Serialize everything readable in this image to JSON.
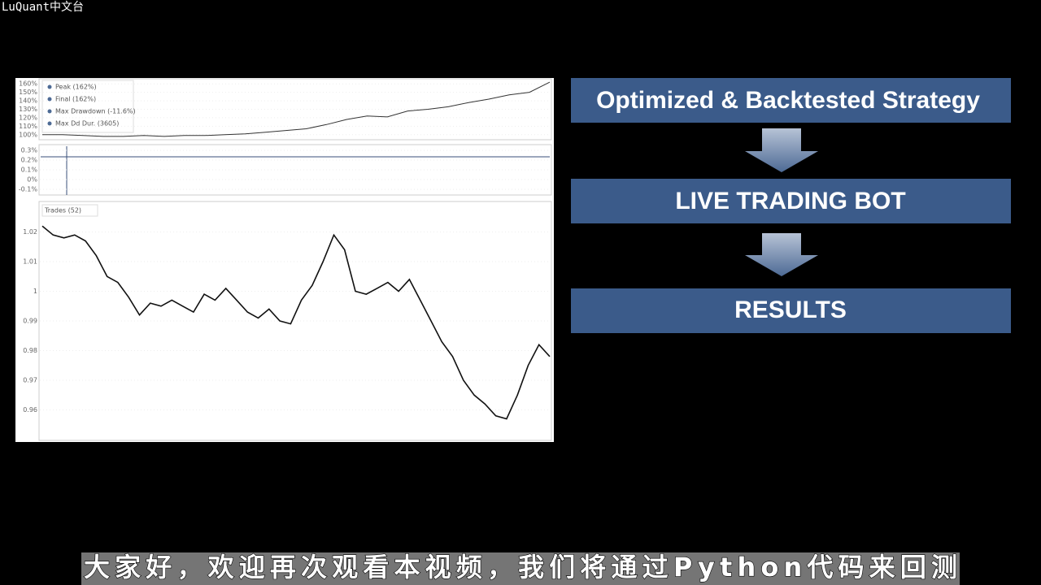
{
  "watermark": "LuQuant中文台",
  "backtest": {
    "equity": {
      "legend": [
        "Peak (162%)",
        "Final (162%)",
        "Max Drawdown (-11.6%)",
        "Max Dd Dur. (3605)"
      ],
      "ylim": [
        95,
        165
      ],
      "yticks": [
        {
          "value": 100,
          "label": "100%"
        },
        {
          "value": 110,
          "label": "110%"
        },
        {
          "value": 120,
          "label": "120%"
        },
        {
          "value": 130,
          "label": "130%"
        },
        {
          "value": 140,
          "label": "140%"
        },
        {
          "value": 150,
          "label": "150%"
        },
        {
          "value": 160,
          "label": "160%"
        }
      ],
      "values": [
        100,
        100,
        99,
        98,
        98,
        99,
        98,
        99,
        99,
        100,
        101,
        103,
        105,
        107,
        112,
        118,
        122,
        121,
        128,
        130,
        133,
        138,
        142,
        147,
        150,
        162
      ]
    },
    "trades": {
      "ylim": [
        -0.15,
        0.35
      ],
      "yticks": [
        {
          "value": -0.1,
          "label": "-0.1%"
        },
        {
          "value": 0,
          "label": "0%"
        },
        {
          "value": 0.1,
          "label": "0.1%"
        },
        {
          "value": 0.2,
          "label": "0.2%"
        },
        {
          "value": 0.3,
          "label": "0.3%"
        }
      ]
    },
    "price": {
      "legend": "Trades (52)",
      "ylim": [
        0.95,
        1.03
      ],
      "yticks": [
        0.96,
        0.97,
        0.98,
        0.99,
        1,
        1.01,
        1.02
      ],
      "values": [
        1.022,
        1.019,
        1.018,
        1.019,
        1.017,
        1.012,
        1.005,
        1.003,
        0.998,
        0.992,
        0.996,
        0.995,
        0.997,
        0.995,
        0.993,
        0.999,
        0.997,
        1.001,
        0.997,
        0.993,
        0.991,
        0.994,
        0.99,
        0.989,
        0.997,
        1.002,
        1.01,
        1.019,
        1.014,
        1.0,
        0.999,
        1.001,
        1.003,
        1.0,
        1.004,
        0.997,
        0.99,
        0.983,
        0.978,
        0.97,
        0.965,
        0.962,
        0.958,
        0.957,
        0.965,
        0.975,
        0.982,
        0.978
      ]
    }
  },
  "nodes": [
    {
      "label": "Optimized & Backtested Strategy"
    },
    {
      "label": "LIVE TRADING BOT"
    },
    {
      "label": "RESULTS"
    }
  ],
  "subtitle": "大家好，欢迎再次观看本视频，我们将通过Python代码来回测"
}
